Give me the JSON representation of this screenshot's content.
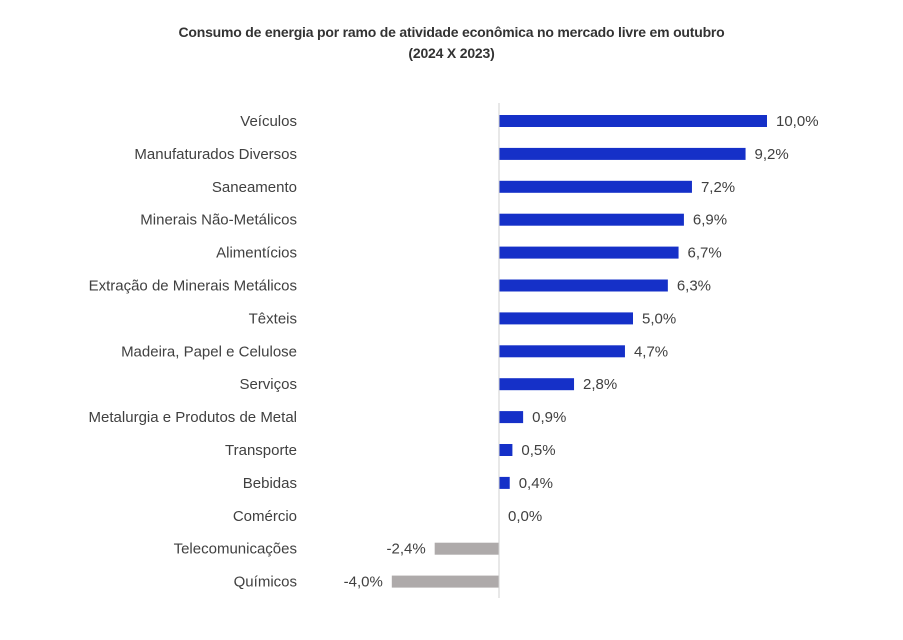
{
  "chart_data": {
    "type": "bar",
    "orientation": "horizontal",
    "title": "Consumo de energia por ramo de atividade econômica no mercado livre em outubro",
    "subtitle": "(2024 X 2023)",
    "categories": [
      "Veículos",
      "Manufaturados Diversos",
      "Saneamento",
      "Minerais Não-Metálicos",
      "Alimentícios",
      "Extração de Minerais Metálicos",
      "Têxteis",
      "Madeira, Papel e Celulose",
      "Serviços",
      "Metalurgia e Produtos de Metal",
      "Transporte",
      "Bebidas",
      "Comércio",
      "Telecomunicações",
      "Químicos"
    ],
    "values": [
      10.0,
      9.2,
      7.2,
      6.9,
      6.7,
      6.3,
      5.0,
      4.7,
      2.8,
      0.9,
      0.5,
      0.4,
      0.0,
      -2.4,
      -4.0
    ],
    "value_labels": [
      "10,0%",
      "9,2%",
      "7,2%",
      "6,9%",
      "6,7%",
      "6,3%",
      "5,0%",
      "4,7%",
      "2,8%",
      "0,9%",
      "0,5%",
      "0,4%",
      "0,0%",
      "-2,4%",
      "-4,0%"
    ],
    "xlim": [
      -4.0,
      10.0
    ],
    "positive_color": "#1530c8",
    "negative_color": "#aeaaaa",
    "axis_color": "#d0d0d0",
    "grid": false,
    "legend": "none"
  }
}
